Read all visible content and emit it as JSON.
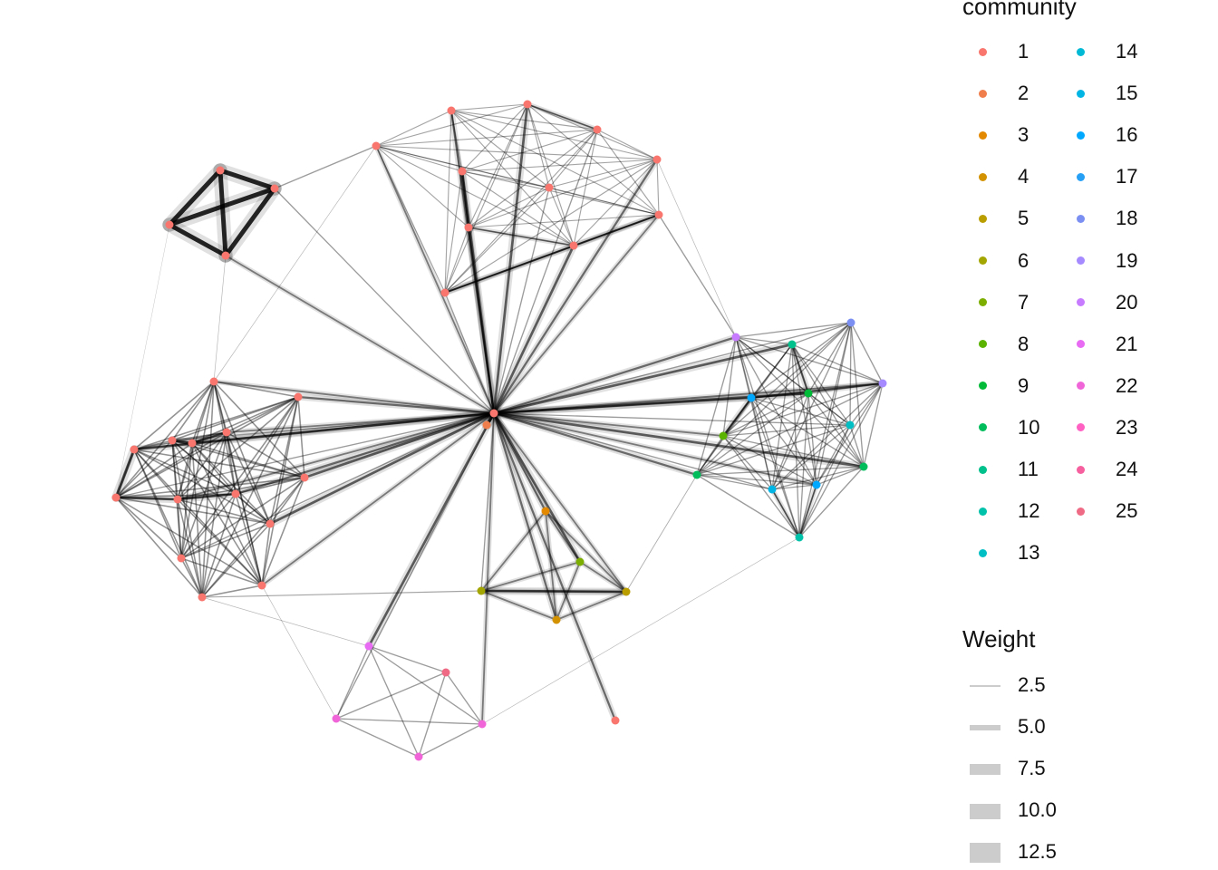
{
  "legend": {
    "community_title": "community",
    "communities": [
      {
        "label": "1",
        "color": "#F8766D"
      },
      {
        "label": "2",
        "color": "#F07E4D"
      },
      {
        "label": "3",
        "color": "#E38900"
      },
      {
        "label": "4",
        "color": "#D39200"
      },
      {
        "label": "5",
        "color": "#BA9E00"
      },
      {
        "label": "6",
        "color": "#A3A500"
      },
      {
        "label": "7",
        "color": "#7CAE00"
      },
      {
        "label": "8",
        "color": "#5BB300"
      },
      {
        "label": "9",
        "color": "#00BA38"
      },
      {
        "label": "10",
        "color": "#00BD5C"
      },
      {
        "label": "11",
        "color": "#00C08B"
      },
      {
        "label": "12",
        "color": "#00C1A9"
      },
      {
        "label": "13",
        "color": "#00BFC4"
      },
      {
        "label": "14",
        "color": "#00BAD5"
      },
      {
        "label": "15",
        "color": "#00B4E4"
      },
      {
        "label": "16",
        "color": "#00A9FF"
      },
      {
        "label": "17",
        "color": "#26A0F5"
      },
      {
        "label": "18",
        "color": "#7B8FF3"
      },
      {
        "label": "19",
        "color": "#A58AFF"
      },
      {
        "label": "20",
        "color": "#C77CFF"
      },
      {
        "label": "21",
        "color": "#E76BF3"
      },
      {
        "label": "22",
        "color": "#F066D9"
      },
      {
        "label": "23",
        "color": "#FF61C3"
      },
      {
        "label": "24",
        "color": "#F7609F"
      },
      {
        "label": "25",
        "color": "#EF6A84"
      }
    ],
    "weight_title": "Weight",
    "weights": [
      {
        "label": "2.5",
        "value": 2.5
      },
      {
        "label": "5.0",
        "value": 5.0
      },
      {
        "label": "7.5",
        "value": 7.5
      },
      {
        "label": "10.0",
        "value": 10.0
      },
      {
        "label": "12.5",
        "value": 12.5
      }
    ]
  },
  "chart_data": {
    "type": "network",
    "edge_color": "#000000",
    "node_color_default": "#F8766D",
    "hub_node": "hub1",
    "clusters": [
      {
        "name": "top-left-square",
        "nodes": [
          "tl1",
          "tl2",
          "tl3",
          "tl4"
        ],
        "community": "1"
      },
      {
        "name": "top-center",
        "nodes": [
          "tc1",
          "tc2",
          "tc3",
          "tc4",
          "tc5",
          "tc6",
          "tc7",
          "tc8",
          "tc9",
          "tc10",
          "tc11"
        ],
        "community": "1"
      },
      {
        "name": "left-cluster",
        "nodes": [
          "l1",
          "l2",
          "l3",
          "l4",
          "l5",
          "l6",
          "l7",
          "l8",
          "l9",
          "l10",
          "l11",
          "l12",
          "l13",
          "l14"
        ],
        "community": "1"
      },
      {
        "name": "right-cluster",
        "nodes": [
          "r1",
          "r2",
          "r3",
          "r4",
          "r5",
          "r6",
          "r7",
          "r8",
          "r9",
          "r10",
          "r11",
          "r12",
          "r13"
        ],
        "community": "mixed"
      },
      {
        "name": "bottom-center",
        "nodes": [
          "bc1",
          "bc2",
          "bc3",
          "bc4",
          "bc5"
        ],
        "community": "mixed"
      },
      {
        "name": "bottom-left",
        "nodes": [
          "bl1",
          "bl2",
          "bl3",
          "bl4",
          "bl5"
        ],
        "community": "mixed"
      }
    ],
    "nodes": [
      {
        "id": "hub1",
        "community": "1"
      },
      {
        "id": "hub2",
        "community": "2"
      },
      {
        "id": "tl1",
        "community": "1"
      },
      {
        "id": "tl2",
        "community": "1"
      },
      {
        "id": "tl3",
        "community": "1"
      },
      {
        "id": "tl4",
        "community": "1"
      },
      {
        "id": "tc1",
        "community": "1"
      },
      {
        "id": "tc2",
        "community": "1"
      },
      {
        "id": "tc3",
        "community": "1"
      },
      {
        "id": "tc4",
        "community": "1"
      },
      {
        "id": "tc5",
        "community": "1"
      },
      {
        "id": "tc6",
        "community": "1"
      },
      {
        "id": "tc7",
        "community": "1"
      },
      {
        "id": "tc8",
        "community": "1"
      },
      {
        "id": "tc9",
        "community": "1"
      },
      {
        "id": "tc10",
        "community": "1"
      },
      {
        "id": "tc11",
        "community": "1"
      },
      {
        "id": "l1",
        "community": "1"
      },
      {
        "id": "l2",
        "community": "1"
      },
      {
        "id": "l3",
        "community": "1"
      },
      {
        "id": "l4",
        "community": "1"
      },
      {
        "id": "l5",
        "community": "1"
      },
      {
        "id": "l6",
        "community": "1"
      },
      {
        "id": "l7",
        "community": "1"
      },
      {
        "id": "l8",
        "community": "1"
      },
      {
        "id": "l9",
        "community": "1"
      },
      {
        "id": "l10",
        "community": "1"
      },
      {
        "id": "l11",
        "community": "1"
      },
      {
        "id": "l12",
        "community": "1"
      },
      {
        "id": "l13",
        "community": "1"
      },
      {
        "id": "l14",
        "community": "1"
      },
      {
        "id": "r1",
        "community": "20"
      },
      {
        "id": "r2",
        "community": "11"
      },
      {
        "id": "r3",
        "community": "18"
      },
      {
        "id": "r4",
        "community": "19"
      },
      {
        "id": "r5",
        "community": "16"
      },
      {
        "id": "r6",
        "community": "9"
      },
      {
        "id": "r7",
        "community": "13"
      },
      {
        "id": "r8",
        "community": "8"
      },
      {
        "id": "r9",
        "community": "10"
      },
      {
        "id": "r10",
        "community": "10"
      },
      {
        "id": "r11",
        "community": "15"
      },
      {
        "id": "r12",
        "community": "16"
      },
      {
        "id": "r13",
        "community": "12"
      },
      {
        "id": "bc1",
        "community": "3"
      },
      {
        "id": "bc2",
        "community": "7"
      },
      {
        "id": "bc3",
        "community": "6"
      },
      {
        "id": "bc4",
        "community": "5"
      },
      {
        "id": "bc5",
        "community": "4"
      },
      {
        "id": "bl1",
        "community": "21"
      },
      {
        "id": "bl2",
        "community": "25"
      },
      {
        "id": "bl3",
        "community": "22"
      },
      {
        "id": "bl4",
        "community": "22"
      },
      {
        "id": "bl5",
        "community": "22"
      },
      {
        "id": "iso1",
        "community": "1"
      }
    ]
  }
}
